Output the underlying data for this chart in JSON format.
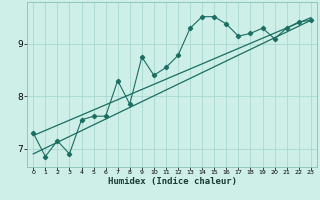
{
  "title": "",
  "xlabel": "Humidex (Indice chaleur)",
  "ylabel": "",
  "bg_color": "#ceeee8",
  "grid_color": "#a8d8d0",
  "line_color": "#1a6e62",
  "xlim": [
    -0.5,
    23.5
  ],
  "ylim": [
    6.65,
    9.8
  ],
  "xticks": [
    0,
    1,
    2,
    3,
    4,
    5,
    6,
    7,
    8,
    9,
    10,
    11,
    12,
    13,
    14,
    15,
    16,
    17,
    18,
    19,
    20,
    21,
    22,
    23
  ],
  "yticks": [
    7,
    8,
    9
  ],
  "scatter_x": [
    0,
    1,
    2,
    3,
    4,
    5,
    6,
    7,
    8,
    9,
    10,
    11,
    12,
    13,
    14,
    15,
    16,
    17,
    18,
    19,
    20,
    21,
    22,
    23
  ],
  "scatter_y": [
    7.3,
    6.85,
    7.15,
    6.9,
    7.55,
    7.62,
    7.62,
    8.3,
    7.85,
    8.75,
    8.4,
    8.55,
    8.78,
    9.3,
    9.52,
    9.52,
    9.38,
    9.15,
    9.2,
    9.3,
    9.1,
    9.3,
    9.42,
    9.45
  ],
  "line1_x": [
    0,
    23
  ],
  "line1_y": [
    6.9,
    9.45
  ],
  "line2_x": [
    0,
    23
  ],
  "line2_y": [
    7.25,
    9.5
  ]
}
